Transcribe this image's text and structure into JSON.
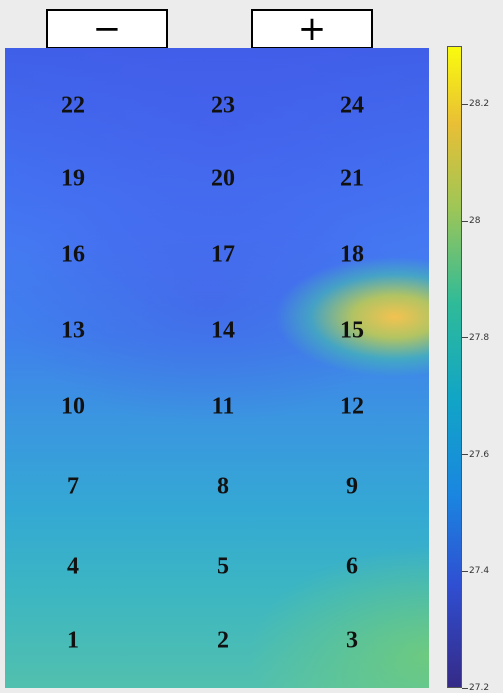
{
  "controls": {
    "minus_label": "−",
    "plus_label": "+"
  },
  "grid": {
    "rows": [
      [
        "22",
        "23",
        "24"
      ],
      [
        "19",
        "20",
        "21"
      ],
      [
        "16",
        "17",
        "18"
      ],
      [
        "13",
        "14",
        "15"
      ],
      [
        "10",
        "11",
        "12"
      ],
      [
        "7",
        "8",
        "9"
      ],
      [
        "4",
        "5",
        "6"
      ],
      [
        "1",
        "2",
        "3"
      ]
    ]
  },
  "colorbar": {
    "min": 27.2,
    "max": 28.3,
    "ticks": [
      "28.2",
      "28",
      "27.8",
      "27.6",
      "27.4",
      "27.2"
    ],
    "colormap": "parula"
  }
}
